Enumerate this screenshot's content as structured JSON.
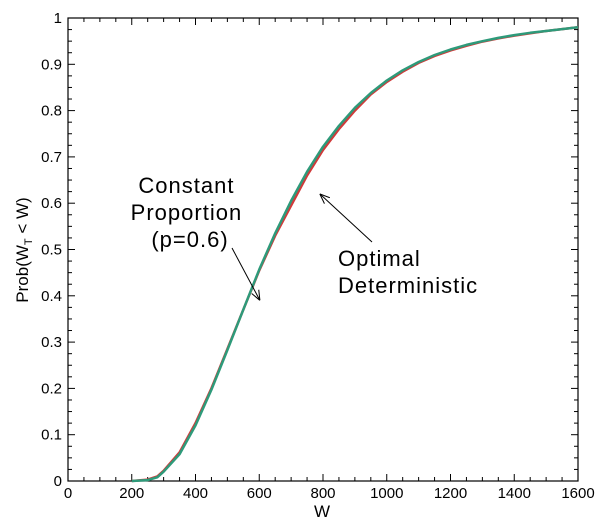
{
  "chart_data": {
    "type": "line",
    "title": "",
    "xlabel": "W",
    "ylabel": {
      "prefix": "Prob(W",
      "subscript": "T",
      "suffix": " < W)"
    },
    "xlim": [
      0,
      1600
    ],
    "ylim": [
      0,
      1
    ],
    "xticks": [
      0,
      200,
      400,
      600,
      800,
      1000,
      1200,
      1400,
      1600
    ],
    "xtick_labels": [
      "0",
      "200",
      "400",
      "600",
      "800",
      "1000",
      "1200",
      "1400",
      "1600"
    ],
    "yticks": [
      0,
      0.1,
      0.2,
      0.3,
      0.4,
      0.5,
      0.6,
      0.7,
      0.8,
      0.9,
      1
    ],
    "ytick_labels": [
      "0",
      "0.1",
      "0.2",
      "0.3",
      "0.4",
      "0.5",
      "0.6",
      "0.7",
      "0.8",
      "0.9",
      "1"
    ],
    "grid": false,
    "legend": "none",
    "series": [
      {
        "color": "#d03a3a",
        "x": [
          200,
          250,
          280,
          300,
          350,
          400,
          450,
          500,
          550,
          600,
          650,
          700,
          750,
          800,
          850,
          900,
          950,
          1000,
          1050,
          1100,
          1150,
          1200,
          1250,
          1300,
          1350,
          1400,
          1450,
          1500,
          1550,
          1600
        ],
        "y": [
          0.0,
          0.003,
          0.01,
          0.022,
          0.062,
          0.125,
          0.2,
          0.285,
          0.37,
          0.455,
          0.53,
          0.595,
          0.66,
          0.715,
          0.76,
          0.8,
          0.835,
          0.862,
          0.884,
          0.903,
          0.918,
          0.93,
          0.94,
          0.949,
          0.956,
          0.962,
          0.967,
          0.972,
          0.976,
          0.98
        ]
      },
      {
        "color": "#2e9a7a",
        "x": [
          200,
          250,
          280,
          300,
          350,
          400,
          450,
          500,
          550,
          600,
          650,
          700,
          750,
          800,
          850,
          900,
          950,
          1000,
          1050,
          1100,
          1150,
          1200,
          1250,
          1300,
          1350,
          1400,
          1450,
          1500,
          1550,
          1600
        ],
        "y": [
          0.0,
          0.002,
          0.008,
          0.02,
          0.058,
          0.12,
          0.197,
          0.283,
          0.37,
          0.457,
          0.535,
          0.605,
          0.668,
          0.722,
          0.767,
          0.806,
          0.838,
          0.865,
          0.887,
          0.905,
          0.92,
          0.932,
          0.942,
          0.95,
          0.957,
          0.963,
          0.968,
          0.972,
          0.976,
          0.98
        ]
      }
    ],
    "annotations": [
      {
        "lines": [
          "Constant",
          "Proportion",
          "(p=0.6)"
        ],
        "points_to": {
          "x": 602,
          "y": 0.39
        }
      },
      {
        "lines": [
          "Optimal",
          "Deterministic"
        ],
        "points_to": {
          "x": 790,
          "y": 0.62
        }
      }
    ]
  }
}
